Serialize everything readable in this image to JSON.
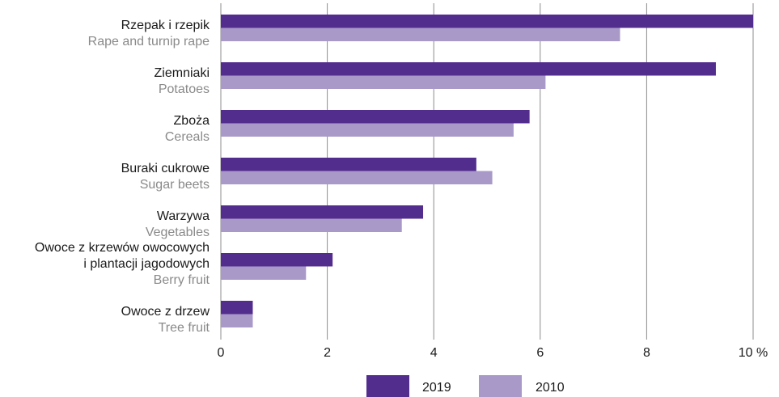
{
  "chart_data": {
    "type": "bar",
    "orientation": "horizontal",
    "categories": [
      {
        "label_pl": [
          "Rzepak i rzepik"
        ],
        "label_en": "Rape and turnip rape"
      },
      {
        "label_pl": [
          "Ziemniaki"
        ],
        "label_en": "Potatoes"
      },
      {
        "label_pl": [
          "Zboża"
        ],
        "label_en": "Cereals"
      },
      {
        "label_pl": [
          "Buraki cukrowe"
        ],
        "label_en": "Sugar beets"
      },
      {
        "label_pl": [
          "Warzywa"
        ],
        "label_en": "Vegetables"
      },
      {
        "label_pl": [
          "Owoce z krzewów owocowych",
          "i plantacji jagodowych"
        ],
        "label_en": "Berry fruit"
      },
      {
        "label_pl": [
          "Owoce z drzew"
        ],
        "label_en": "Tree fruit"
      }
    ],
    "series": [
      {
        "name": "2019",
        "color": "#532d8e",
        "values": [
          10.0,
          9.3,
          5.8,
          4.8,
          3.8,
          2.1,
          0.6
        ]
      },
      {
        "name": "2010",
        "color": "#a899c9",
        "values": [
          7.5,
          6.1,
          5.5,
          5.1,
          3.4,
          1.6,
          0.6
        ]
      }
    ],
    "xlim": [
      0,
      10
    ],
    "xticks": [
      "0",
      "2",
      "4",
      "6",
      "8",
      "10 %"
    ],
    "xtick_values": [
      0,
      2,
      4,
      6,
      8,
      10
    ],
    "grid": true,
    "legend_position": "bottom-center"
  }
}
